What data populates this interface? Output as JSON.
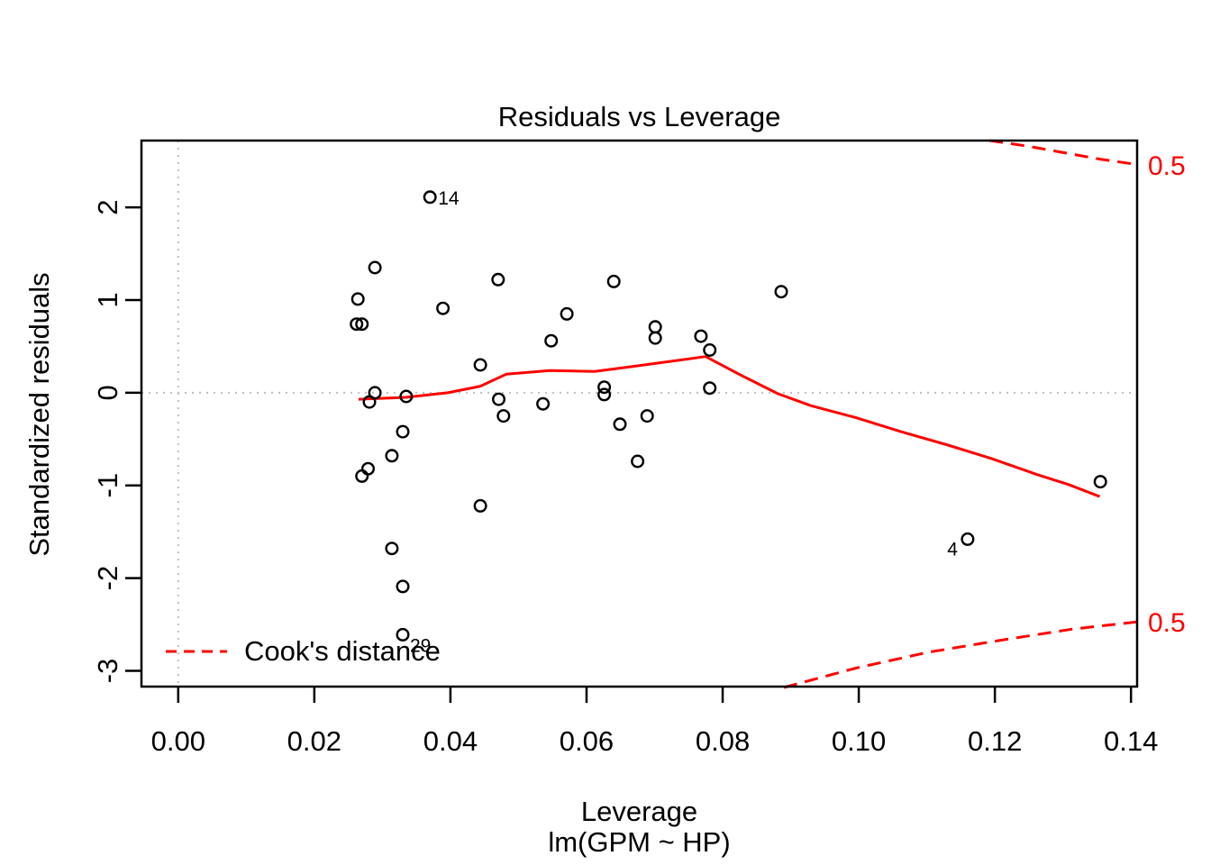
{
  "title": "Residuals vs Leverage",
  "legend": {
    "label": "Cook's distance"
  },
  "colors": {
    "accent": "#FF0000",
    "grid": "#BEBEBE",
    "foreground": "#000000",
    "background": "#FFFFFF"
  },
  "chart_data": {
    "type": "scatter",
    "title": "Residuals vs Leverage",
    "xlabel": "Leverage",
    "xlabel_sub": "lm(GPM ~ HP)",
    "ylabel": "Standardized residuals",
    "xlim": [
      -0.0054,
      0.1409
    ],
    "ylim": [
      -3.17,
      2.72
    ],
    "x_ticks": [
      0,
      0.02,
      0.04,
      0.06,
      0.08,
      0.1,
      0.12,
      0.14
    ],
    "x_tick_labels": [
      "0.00",
      "0.02",
      "0.04",
      "0.06",
      "0.08",
      "0.10",
      "0.12",
      "0.14"
    ],
    "y_ticks": [
      -3,
      -2,
      -1,
      0,
      1,
      2
    ],
    "y_tick_labels": [
      "-3",
      "-2",
      "-1",
      "0",
      "1",
      "2"
    ],
    "grid": false,
    "legend_label": "Cook's distance",
    "legend_position": "bottom-left-inside",
    "guides": {
      "h_line_y": 0,
      "v_line_x": 0
    },
    "points": [
      {
        "x": 0.037,
        "y": 2.11,
        "label": "14",
        "label_pos": "right"
      },
      {
        "x": 0.0289,
        "y": 1.35
      },
      {
        "x": 0.047,
        "y": 1.22
      },
      {
        "x": 0.064,
        "y": 1.2
      },
      {
        "x": 0.0886,
        "y": 1.09
      },
      {
        "x": 0.0264,
        "y": 1.01
      },
      {
        "x": 0.0389,
        "y": 0.91
      },
      {
        "x": 0.0571,
        "y": 0.85
      },
      {
        "x": 0.0262,
        "y": 0.74
      },
      {
        "x": 0.027,
        "y": 0.74
      },
      {
        "x": 0.0701,
        "y": 0.71
      },
      {
        "x": 0.0701,
        "y": 0.59
      },
      {
        "x": 0.0768,
        "y": 0.61
      },
      {
        "x": 0.0781,
        "y": 0.46
      },
      {
        "x": 0.0548,
        "y": 0.56
      },
      {
        "x": 0.0444,
        "y": 0.3
      },
      {
        "x": 0.0626,
        "y": 0.06
      },
      {
        "x": 0.0626,
        "y": -0.02
      },
      {
        "x": 0.0781,
        "y": 0.05
      },
      {
        "x": 0.0289,
        "y": 0.0
      },
      {
        "x": 0.0335,
        "y": -0.04
      },
      {
        "x": 0.0281,
        "y": -0.1
      },
      {
        "x": 0.0471,
        "y": -0.07
      },
      {
        "x": 0.0536,
        "y": -0.12
      },
      {
        "x": 0.0478,
        "y": -0.25
      },
      {
        "x": 0.0689,
        "y": -0.25
      },
      {
        "x": 0.0649,
        "y": -0.34
      },
      {
        "x": 0.033,
        "y": -0.42
      },
      {
        "x": 0.0314,
        "y": -0.68
      },
      {
        "x": 0.0279,
        "y": -0.82
      },
      {
        "x": 0.027,
        "y": -0.9
      },
      {
        "x": 0.0675,
        "y": -0.74
      },
      {
        "x": 0.0444,
        "y": -1.22
      },
      {
        "x": 0.0314,
        "y": -1.68
      },
      {
        "x": 0.033,
        "y": -2.09
      },
      {
        "x": 0.033,
        "y": -2.61,
        "label": "29",
        "label_pos": "below-right"
      },
      {
        "x": 0.116,
        "y": -1.58,
        "label": "4",
        "label_pos": "left-below"
      },
      {
        "x": 0.1355,
        "y": -0.96
      }
    ],
    "smoother": {
      "name": "lowess-fit",
      "points": [
        [
          0.0265,
          -0.07
        ],
        [
          0.0334,
          -0.05
        ],
        [
          0.0396,
          0.0
        ],
        [
          0.0444,
          0.07
        ],
        [
          0.0482,
          0.2
        ],
        [
          0.0546,
          0.24
        ],
        [
          0.0612,
          0.23
        ],
        [
          0.0665,
          0.28
        ],
        [
          0.0725,
          0.34
        ],
        [
          0.0775,
          0.39
        ],
        [
          0.0824,
          0.2
        ],
        [
          0.0881,
          -0.01
        ],
        [
          0.093,
          -0.14
        ],
        [
          0.0996,
          -0.27
        ],
        [
          0.1062,
          -0.42
        ],
        [
          0.1129,
          -0.56
        ],
        [
          0.1195,
          -0.71
        ],
        [
          0.1261,
          -0.88
        ],
        [
          0.1308,
          -0.99
        ],
        [
          0.1354,
          -1.12
        ]
      ]
    },
    "cooks_bands": [
      {
        "label": "0.5",
        "position": "top-right",
        "points": [
          [
            0.1192,
            2.72
          ],
          [
            0.1248,
            2.66
          ],
          [
            0.1301,
            2.59
          ],
          [
            0.1354,
            2.52
          ],
          [
            0.1411,
            2.46
          ]
        ]
      },
      {
        "label": "0.5",
        "position": "bottom-right",
        "points": [
          [
            0.089,
            -3.18
          ],
          [
            0.0996,
            -2.97
          ],
          [
            0.1102,
            -2.8
          ],
          [
            0.1208,
            -2.67
          ],
          [
            0.1314,
            -2.55
          ],
          [
            0.1411,
            -2.47
          ]
        ]
      }
    ]
  }
}
